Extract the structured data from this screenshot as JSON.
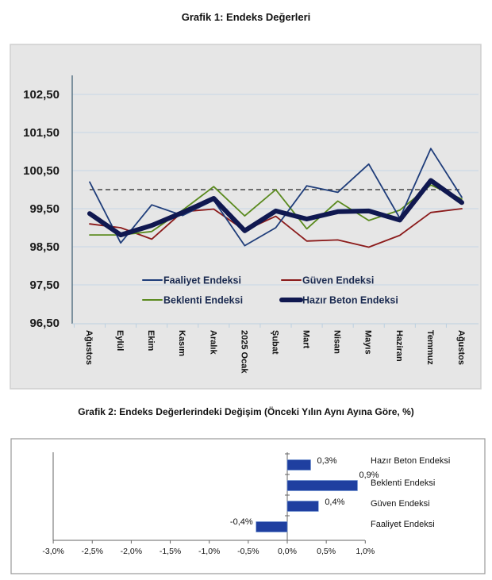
{
  "chart_data": [
    {
      "type": "line",
      "title": "Grafik 1: Endeks Değerleri",
      "xlabel": "",
      "ylabel": "",
      "ylim": [
        96.5,
        103.0
      ],
      "yticks": [
        "96,50",
        "97,50",
        "98,50",
        "99,50",
        "100,50",
        "101,50",
        "102,50"
      ],
      "ytick_values": [
        96.5,
        97.5,
        98.5,
        99.5,
        100.5,
        101.5,
        102.5
      ],
      "grid": true,
      "reference_line": {
        "value": 100.0,
        "style": "dashed"
      },
      "categories": [
        "Ağustos",
        "Eylül",
        "Ekim",
        "Kasım",
        "Aralık",
        "2025 Ocak",
        "Şubat",
        "Mart",
        "Nisan",
        "Mayıs",
        "Haziran",
        "Temmuz",
        "Ağustos"
      ],
      "series": [
        {
          "name": "Faaliyet Endeksi",
          "color": "#1f3d7a",
          "values": [
            100.2,
            98.6,
            99.6,
            99.32,
            99.72,
            98.53,
            99.0,
            100.1,
            99.93,
            100.67,
            99.25,
            101.08,
            99.8
          ]
        },
        {
          "name": "Güven Endeksi",
          "color": "#8b1a1a",
          "values": [
            99.1,
            99.0,
            98.7,
            99.42,
            99.49,
            98.93,
            99.3,
            98.65,
            98.68,
            98.49,
            98.8,
            99.4,
            99.5
          ]
        },
        {
          "name": "Beklenti Endeksi",
          "color": "#5a8a1e",
          "values": [
            98.81,
            98.81,
            98.9,
            99.46,
            100.08,
            99.31,
            100.0,
            98.97,
            99.7,
            99.19,
            99.46,
            100.12,
            99.75
          ]
        },
        {
          "name": "Hazır Beton Endeksi",
          "color": "#101850",
          "values": [
            99.37,
            98.81,
            99.06,
            99.4,
            99.77,
            98.92,
            99.44,
            99.23,
            99.42,
            99.44,
            99.2,
            100.24,
            99.66
          ]
        }
      ],
      "legend": {
        "placement": "bottom-center",
        "columns": 2,
        "order": [
          "Faaliyet Endeksi",
          "Güven Endeksi",
          "Beklenti Endeksi",
          "Hazır Beton Endeksi"
        ]
      }
    },
    {
      "type": "bar",
      "orientation": "horizontal",
      "title": "Grafik 2: Endeks Değerlerindeki Değişim (Önceki Yılın Aynı Ayına Göre, %)",
      "categories": [
        "Hazır Beton Endeksi",
        "Beklenti Endeksi",
        "Güven Endeksi",
        "Faaliyet Endeksi"
      ],
      "values": [
        0.3,
        0.9,
        0.4,
        -0.4
      ],
      "data_labels": [
        "0,3%",
        "0,9%",
        "0,4%",
        "-0,4%"
      ],
      "xlim": [
        -3.0,
        1.0
      ],
      "xticks": [
        "-3,0%",
        "-2,5%",
        "-2,0%",
        "-1,5%",
        "-1,0%",
        "-0,5%",
        "0,0%",
        "0,5%",
        "1,0%"
      ],
      "xtick_values": [
        -3.0,
        -2.5,
        -2.0,
        -1.5,
        -1.0,
        -0.5,
        0.0,
        0.5,
        1.0
      ],
      "bar_color": "#1f3fa0",
      "grid": false
    }
  ]
}
